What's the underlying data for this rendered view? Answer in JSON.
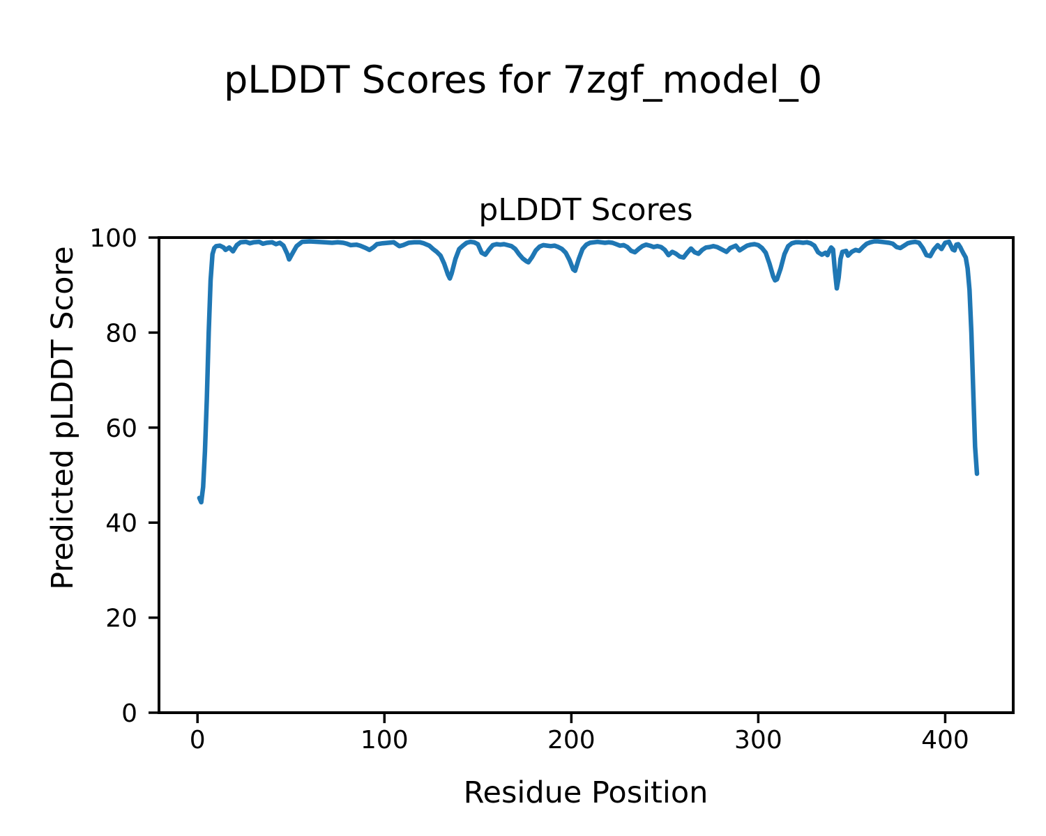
{
  "figure": {
    "suptitle": "pLDDT Scores for 7zgf_model_0"
  },
  "chart_data": {
    "type": "line",
    "suptitle": "pLDDT Scores for 7zgf_model_0",
    "title": "pLDDT Scores",
    "xlabel": "Residue Position",
    "ylabel": "Predicted pLDDT Score",
    "xlim": [
      -20.6,
      436.4
    ],
    "ylim": [
      0,
      100
    ],
    "xticks": [
      0,
      100,
      200,
      300,
      400
    ],
    "yticks": [
      0,
      20,
      40,
      60,
      80,
      100
    ],
    "grid": false,
    "legend": "none",
    "line_color": "#1f77b4",
    "axis_color": "#000000",
    "background_color": "#ffffff",
    "series": [
      {
        "name": "pLDDT",
        "points": [
          [
            1,
            45.2
          ],
          [
            2,
            44.3
          ],
          [
            3,
            47.5
          ],
          [
            4,
            55
          ],
          [
            5,
            66
          ],
          [
            6,
            80
          ],
          [
            7,
            91
          ],
          [
            8,
            96.5
          ],
          [
            9,
            97.8
          ],
          [
            10,
            98.2
          ],
          [
            12,
            98.3
          ],
          [
            14,
            97.9
          ],
          [
            15,
            97.4
          ],
          [
            17,
            97.9
          ],
          [
            19,
            97.1
          ],
          [
            21,
            98.4
          ],
          [
            23,
            99
          ],
          [
            26,
            99.1
          ],
          [
            28,
            98.8
          ],
          [
            30,
            99
          ],
          [
            33,
            99.1
          ],
          [
            35,
            98.7
          ],
          [
            37,
            98.9
          ],
          [
            40,
            99
          ],
          [
            42,
            98.6
          ],
          [
            44,
            98.9
          ],
          [
            46,
            98.3
          ],
          [
            48,
            96.6
          ],
          [
            49,
            95.4
          ],
          [
            51,
            96.8
          ],
          [
            53,
            98.2
          ],
          [
            56,
            99.1
          ],
          [
            60,
            99.2
          ],
          [
            64,
            99.1
          ],
          [
            68,
            99
          ],
          [
            72,
            98.9
          ],
          [
            75,
            99
          ],
          [
            78,
            98.9
          ],
          [
            80,
            98.7
          ],
          [
            82,
            98.4
          ],
          [
            85,
            98.5
          ],
          [
            87,
            98.3
          ],
          [
            90,
            97.8
          ],
          [
            92,
            97.4
          ],
          [
            94,
            97.9
          ],
          [
            96,
            98.6
          ],
          [
            99,
            98.8
          ],
          [
            102,
            98.9
          ],
          [
            105,
            99
          ],
          [
            108,
            98.2
          ],
          [
            110,
            98.4
          ],
          [
            113,
            98.9
          ],
          [
            116,
            99
          ],
          [
            119,
            99
          ],
          [
            121,
            98.8
          ],
          [
            124,
            98.3
          ],
          [
            126,
            97.6
          ],
          [
            128,
            97
          ],
          [
            130,
            96.2
          ],
          [
            132,
            94.5
          ],
          [
            134,
            92.2
          ],
          [
            135,
            91.4
          ],
          [
            136,
            92.5
          ],
          [
            138,
            95.5
          ],
          [
            140,
            97.6
          ],
          [
            142,
            98.3
          ],
          [
            144,
            98.9
          ],
          [
            146,
            99.1
          ],
          [
            148,
            99
          ],
          [
            150,
            98.6
          ],
          [
            152,
            96.8
          ],
          [
            154,
            96.4
          ],
          [
            156,
            97.5
          ],
          [
            158,
            98.4
          ],
          [
            160,
            98.6
          ],
          [
            162,
            98.5
          ],
          [
            164,
            98.6
          ],
          [
            166,
            98.4
          ],
          [
            168,
            98.2
          ],
          [
            170,
            97.6
          ],
          [
            172,
            96.5
          ],
          [
            174,
            95.6
          ],
          [
            176,
            95
          ],
          [
            177,
            94.8
          ],
          [
            179,
            95.9
          ],
          [
            181,
            97.3
          ],
          [
            183,
            98.1
          ],
          [
            185,
            98.4
          ],
          [
            187,
            98.3
          ],
          [
            189,
            98.2
          ],
          [
            191,
            98.3
          ],
          [
            193,
            98
          ],
          [
            195,
            97.6
          ],
          [
            197,
            96.8
          ],
          [
            199,
            95.3
          ],
          [
            201,
            93.3
          ],
          [
            202,
            93
          ],
          [
            204,
            95.5
          ],
          [
            206,
            97.6
          ],
          [
            208,
            98.5
          ],
          [
            210,
            98.9
          ],
          [
            212,
            99
          ],
          [
            214,
            99.1
          ],
          [
            216,
            99
          ],
          [
            218,
            98.9
          ],
          [
            220,
            99
          ],
          [
            222,
            98.9
          ],
          [
            224,
            98.6
          ],
          [
            226,
            98.3
          ],
          [
            228,
            98.4
          ],
          [
            230,
            98
          ],
          [
            232,
            97.2
          ],
          [
            234,
            96.9
          ],
          [
            236,
            97.6
          ],
          [
            238,
            98.2
          ],
          [
            240,
            98.5
          ],
          [
            242,
            98.3
          ],
          [
            244,
            98
          ],
          [
            246,
            98.2
          ],
          [
            248,
            98
          ],
          [
            250,
            97.4
          ],
          [
            252,
            96.3
          ],
          [
            254,
            97
          ],
          [
            256,
            96.6
          ],
          [
            258,
            96
          ],
          [
            260,
            95.8
          ],
          [
            262,
            96.8
          ],
          [
            264,
            97.7
          ],
          [
            266,
            96.9
          ],
          [
            268,
            96.6
          ],
          [
            270,
            97.4
          ],
          [
            272,
            97.9
          ],
          [
            274,
            98
          ],
          [
            276,
            98.2
          ],
          [
            278,
            98
          ],
          [
            280,
            97.6
          ],
          [
            283,
            97
          ],
          [
            285,
            97.8
          ],
          [
            288,
            98.3
          ],
          [
            290,
            97.3
          ],
          [
            292,
            97.8
          ],
          [
            294,
            98.3
          ],
          [
            296,
            98.5
          ],
          [
            298,
            98.6
          ],
          [
            300,
            98.4
          ],
          [
            302,
            97.8
          ],
          [
            304,
            96.8
          ],
          [
            306,
            94.5
          ],
          [
            308,
            91.8
          ],
          [
            309,
            91
          ],
          [
            310,
            91.2
          ],
          [
            312,
            93.5
          ],
          [
            314,
            96.5
          ],
          [
            316,
            98.2
          ],
          [
            318,
            98.8
          ],
          [
            320,
            99
          ],
          [
            322,
            99
          ],
          [
            324,
            98.9
          ],
          [
            326,
            99
          ],
          [
            328,
            98.8
          ],
          [
            330,
            98.3
          ],
          [
            332,
            96.9
          ],
          [
            334,
            96.4
          ],
          [
            336,
            96.8
          ],
          [
            337,
            96.3
          ],
          [
            338,
            97.2
          ],
          [
            339,
            97.9
          ],
          [
            340,
            97.5
          ],
          [
            341,
            93
          ],
          [
            342,
            89.3
          ],
          [
            343,
            91.5
          ],
          [
            344,
            95.5
          ],
          [
            345,
            97
          ],
          [
            347,
            97.2
          ],
          [
            348,
            96.2
          ],
          [
            350,
            97
          ],
          [
            352,
            97.4
          ],
          [
            354,
            97.2
          ],
          [
            356,
            98
          ],
          [
            358,
            98.7
          ],
          [
            360,
            99
          ],
          [
            362,
            99.2
          ],
          [
            364,
            99.2
          ],
          [
            366,
            99.1
          ],
          [
            368,
            99
          ],
          [
            370,
            98.9
          ],
          [
            372,
            98.7
          ],
          [
            374,
            98
          ],
          [
            376,
            97.8
          ],
          [
            378,
            98.3
          ],
          [
            380,
            98.8
          ],
          [
            382,
            99
          ],
          [
            384,
            99.1
          ],
          [
            386,
            98.9
          ],
          [
            388,
            97.8
          ],
          [
            390,
            96.3
          ],
          [
            392,
            96.1
          ],
          [
            394,
            97.5
          ],
          [
            396,
            98.4
          ],
          [
            398,
            97.6
          ],
          [
            400,
            98.9
          ],
          [
            402,
            99.1
          ],
          [
            404,
            97.5
          ],
          [
            405,
            97.3
          ],
          [
            406,
            98.5
          ],
          [
            407,
            98.6
          ],
          [
            408,
            98
          ],
          [
            409,
            97.2
          ],
          [
            410,
            96.5
          ],
          [
            411,
            95.8
          ],
          [
            412,
            93.5
          ],
          [
            413,
            89
          ],
          [
            414,
            80
          ],
          [
            415,
            68
          ],
          [
            416,
            56
          ],
          [
            417,
            50.3
          ]
        ]
      }
    ]
  }
}
